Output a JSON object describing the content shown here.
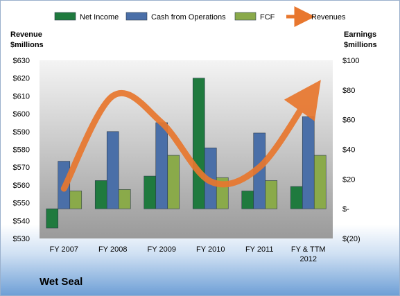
{
  "company": "Wet Seal",
  "colors": {
    "net_income": "#1f7a3e",
    "cash_from_operations": "#4a6fa8",
    "fcf": "#8aaa4a",
    "revenues": "#e8772e",
    "plot_bg_top": "#f4f4f4",
    "plot_bg_bottom": "#9a9a9a"
  },
  "chart_data": {
    "type": "bar",
    "categories": [
      "FY 2007",
      "FY 2008",
      "FY 2009",
      "FY 2010",
      "FY 2011",
      "FY & TTM\n2012"
    ],
    "series": [
      {
        "name": "Net Income",
        "kind": "bar",
        "axis": "right",
        "values": [
          -13,
          19,
          22,
          88,
          12,
          15
        ]
      },
      {
        "name": "Cash from Operations",
        "kind": "bar",
        "axis": "right",
        "values": [
          32,
          52,
          58,
          41,
          51,
          62
        ]
      },
      {
        "name": "FCF",
        "kind": "bar",
        "axis": "right",
        "values": [
          12,
          13,
          36,
          21,
          19,
          36
        ]
      },
      {
        "name": "Revenues",
        "kind": "line",
        "axis": "left",
        "values": [
          558,
          610,
          595,
          562,
          570,
          609
        ]
      }
    ],
    "left_axis": {
      "label": "Revenue\n$millions",
      "range": [
        530,
        630
      ],
      "ticks": [
        "$530",
        "$540",
        "$550",
        "$560",
        "$570",
        "$580",
        "$590",
        "$600",
        "$610",
        "$620",
        "$630"
      ]
    },
    "right_axis": {
      "label": "Earnings\n$millions",
      "range": [
        -20,
        100
      ],
      "ticks": [
        "$(20)",
        "$-",
        "$20",
        "$40",
        "$60",
        "$80",
        "$100"
      ]
    },
    "legend": {
      "position": "top"
    },
    "grid": false
  }
}
